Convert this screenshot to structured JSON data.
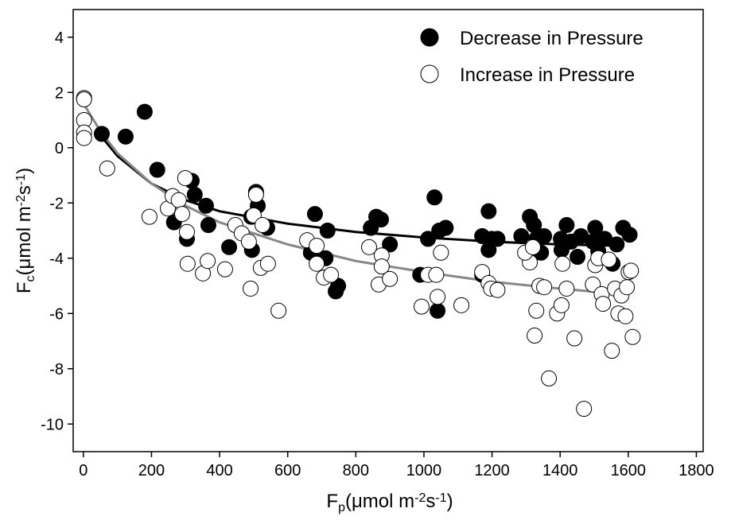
{
  "chart_data": {
    "type": "scatter",
    "x_label": [
      "F",
      "p",
      "(μmol m",
      "-2",
      "s",
      "-1",
      ")"
    ],
    "y_label": [
      "F",
      "c",
      "(μmol m",
      "-2",
      "s",
      "-1",
      ")"
    ],
    "xlim": [
      -30,
      1820
    ],
    "ylim": [
      -11,
      5
    ],
    "xticks": [
      0,
      200,
      400,
      600,
      800,
      1000,
      1200,
      1400,
      1600,
      1800
    ],
    "yticks": [
      -10,
      -8,
      -6,
      -4,
      -2,
      0,
      2,
      4
    ],
    "legend": "upper right",
    "series": [
      {
        "name": "Decrease in Pressure",
        "color": "#000000",
        "marker": "filled",
        "x": [
          54,
          124,
          180,
          217,
          266,
          304,
          318,
          327,
          360,
          367,
          428,
          493,
          495,
          512,
          507,
          540,
          680,
          668,
          717,
          748,
          741,
          711,
          844,
          860,
          874,
          900,
          989,
          1012,
          1031,
          1040,
          1045,
          1064,
          1171,
          1190,
          1171,
          1199,
          1190,
          1216,
          1286,
          1311,
          1323,
          1344,
          1330,
          1353,
          1419,
          1402,
          1404,
          1432,
          1451,
          1461,
          1496,
          1503,
          1512,
          1531,
          1554,
          1566,
          1585,
          1604
        ],
        "y": [
          0.5,
          0.4,
          1.3,
          -0.8,
          -2.7,
          -3.3,
          -1.2,
          -1.7,
          -2.1,
          -2.8,
          -3.6,
          -2.5,
          -3.7,
          -2.1,
          -1.6,
          -2.9,
          -2.4,
          -3.8,
          -3.0,
          -5.0,
          -5.2,
          -4.0,
          -2.9,
          -2.5,
          -2.6,
          -3.5,
          -4.6,
          -3.3,
          -1.8,
          -5.9,
          -3.0,
          -2.9,
          -4.6,
          -2.3,
          -3.2,
          -3.3,
          -3.7,
          -3.3,
          -3.2,
          -2.5,
          -2.8,
          -3.8,
          -3.3,
          -3.2,
          -2.8,
          -3.3,
          -3.7,
          -3.4,
          -3.95,
          -3.2,
          -3.4,
          -2.9,
          -3.75,
          -3.3,
          -4.2,
          -3.5,
          -2.9,
          -3.15
        ]
      },
      {
        "name": "Increase in Pressure",
        "color": "#000000",
        "marker": "open",
        "x": [
          2,
          2,
          2,
          2,
          2,
          70,
          194,
          248,
          262,
          280,
          290,
          299,
          304,
          306,
          351,
          365,
          416,
          446,
          465,
          486,
          491,
          500,
          507,
          526,
          521,
          542,
          573,
          657,
          685,
          685,
          706,
          727,
          839,
          867,
          876,
          876,
          900,
          993,
          1012,
          1036,
          1040,
          1050,
          1110,
          1171,
          1190,
          1197,
          1216,
          1311,
          1297,
          1320,
          1325,
          1330,
          1339,
          1353,
          1367,
          1391,
          1404,
          1407,
          1419,
          1442,
          1470,
          1496,
          1503,
          1512,
          1522,
          1526,
          1543,
          1552,
          1561,
          1571,
          1580,
          1592,
          1596,
          1601,
          1613,
          1608
        ],
        "y": [
          1.8,
          1.75,
          1.0,
          0.55,
          0.35,
          -0.75,
          -2.5,
          -2.2,
          -1.75,
          -1.9,
          -2.4,
          -1.1,
          -3.05,
          -4.2,
          -4.55,
          -4.1,
          -4.4,
          -2.8,
          -3.1,
          -3.4,
          -5.1,
          -2.45,
          -1.7,
          -2.8,
          -4.35,
          -4.2,
          -5.9,
          -3.35,
          -3.55,
          -4.2,
          -4.7,
          -4.6,
          -3.6,
          -4.95,
          -3.9,
          -4.3,
          -4.75,
          -5.75,
          -4.6,
          -4.6,
          -5.4,
          -3.8,
          -5.7,
          -4.5,
          -4.9,
          -5.1,
          -5.15,
          -4.15,
          -3.8,
          -3.6,
          -6.8,
          -5.9,
          -5.0,
          -5.05,
          -8.35,
          -6.0,
          -5.7,
          -4.2,
          -5.1,
          -6.9,
          -9.45,
          -4.95,
          -4.25,
          -4.0,
          -5.3,
          -5.65,
          -4.05,
          -7.35,
          -5.1,
          -6.0,
          -5.35,
          -6.1,
          -5.05,
          -4.5,
          -6.85,
          -4.45
        ]
      }
    ],
    "fits": [
      {
        "color": "#000000",
        "x": [
          40,
          100,
          200,
          300,
          400,
          600,
          800,
          1000,
          1200,
          1400,
          1580
        ],
        "y": [
          0.6,
          -0.3,
          -1.3,
          -1.9,
          -2.3,
          -2.75,
          -3.05,
          -3.25,
          -3.4,
          -3.5,
          -3.55
        ]
      },
      {
        "color": "#888888",
        "x": [
          0,
          50,
          100,
          200,
          300,
          400,
          600,
          800,
          1000,
          1200,
          1400,
          1580
        ],
        "y": [
          1.6,
          0.6,
          -0.2,
          -1.3,
          -2.1,
          -2.7,
          -3.5,
          -4.1,
          -4.5,
          -4.85,
          -5.1,
          -5.3
        ]
      }
    ]
  }
}
